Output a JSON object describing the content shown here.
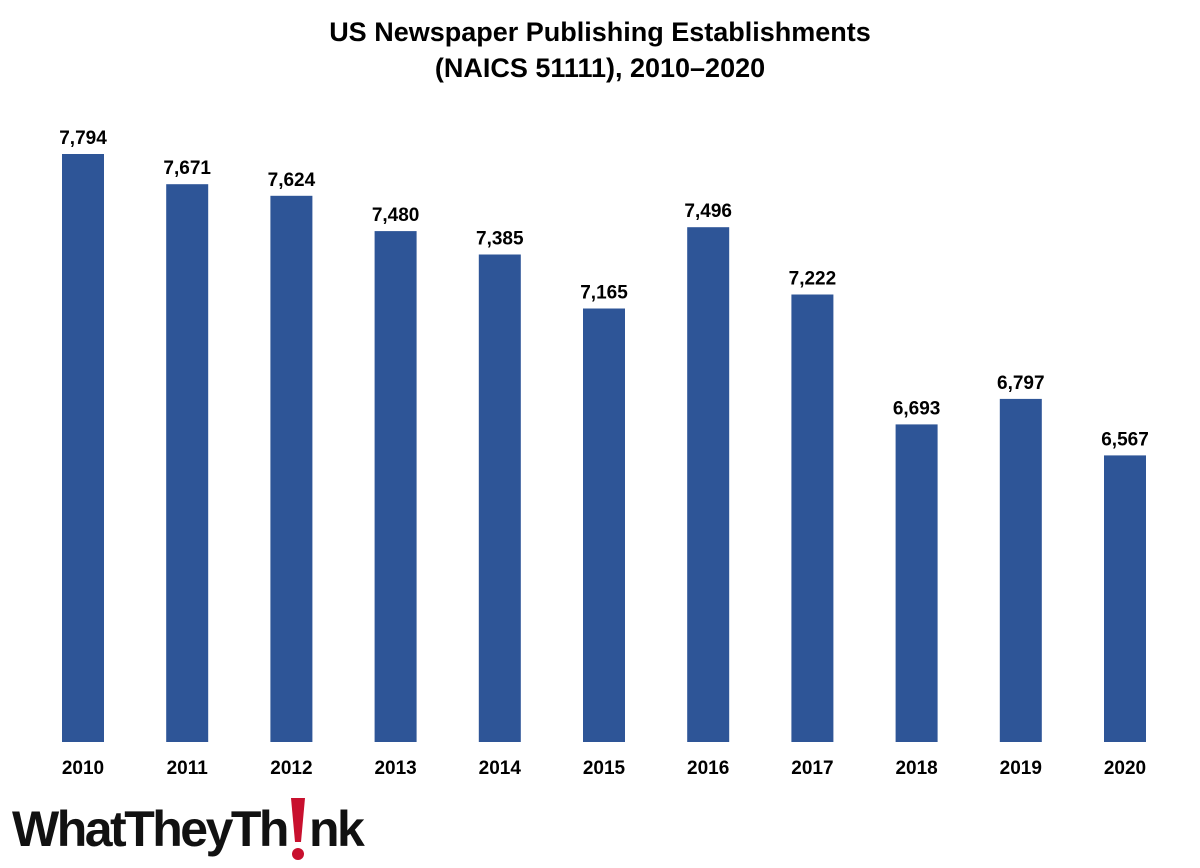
{
  "title_lines": [
    "US Newspaper Publishing Establishments",
    "(NAICS 51111), 2010–2020"
  ],
  "brand": {
    "name": "WhatTheyThink",
    "text_before_mark": "WhatTheyTh",
    "text_after_mark": "nk",
    "mark_icon": "exclamation-icon",
    "mark_color": "#c8102e"
  },
  "colors": {
    "bar": "#2e5597",
    "text": "#000000"
  },
  "chart_data": {
    "type": "bar",
    "title": "US Newspaper Publishing Establishments (NAICS 51111), 2010–2020",
    "categories": [
      "2010",
      "2011",
      "2012",
      "2013",
      "2014",
      "2015",
      "2016",
      "2017",
      "2018",
      "2019",
      "2020"
    ],
    "values": [
      7794,
      7671,
      7624,
      7480,
      7385,
      7165,
      7496,
      7222,
      6693,
      6797,
      6567
    ],
    "value_labels": [
      "7,794",
      "7,671",
      "7,624",
      "7,480",
      "7,385",
      "7,165",
      "7,496",
      "7,222",
      "6,693",
      "6,797",
      "6,567"
    ],
    "xlabel": "",
    "ylabel": "",
    "ylim": [
      5400,
      7794
    ],
    "grid": false,
    "legend": "none"
  }
}
